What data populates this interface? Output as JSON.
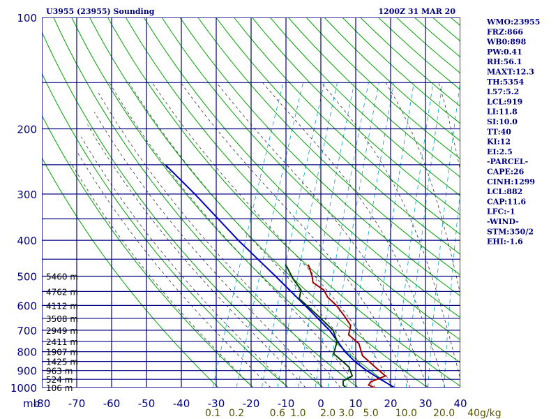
{
  "header": {
    "title": "U3955 (23955) Sounding",
    "datetime": "1200Z 31 MAR 20"
  },
  "indices": [
    "WMO:23955",
    "FRZ:866",
    "WB0:898",
    "PW:0.41",
    "RH:56.1",
    "MAXT:12.3",
    "TH:5354",
    "L57:5.2",
    "LCL:919",
    "LI:11.8",
    "SI:10.0",
    "TT:40",
    "KI:12",
    "EI:2.5",
    "-PARCEL-",
    "CAPE:26",
    "CINH:1299",
    "LCL:882",
    "CAP:11.6",
    "LFC:-1",
    "-WIND-",
    "STM:350/2",
    "EHI:-1.6"
  ],
  "colors": {
    "frame": "#000080",
    "dry_adiabat": "#00a000",
    "moist_adiabat": "#333333",
    "mixing_ratio": "#00a0c8",
    "temperature": "#a00000",
    "dewpoint": "#004000",
    "parcel": "#0000c0",
    "mixing_label": "#555500"
  },
  "chart_data": {
    "type": "skew-t",
    "y_axis_label": "mb",
    "pressure_levels": [
      100,
      200,
      300,
      400,
      500,
      600,
      700,
      800,
      900,
      1000
    ],
    "pressure_labels": [
      "100",
      "200",
      "300",
      "400",
      "500",
      "600",
      "700",
      "800",
      "900",
      "1000"
    ],
    "temp_ticks": [
      -80,
      -70,
      -60,
      -50,
      -40,
      -30,
      -20,
      -10,
      0,
      10,
      20,
      30,
      40
    ],
    "temp_tick_labels": [
      "-80",
      "-70",
      "-60",
      "-50",
      "-40",
      "-30",
      "-20",
      "-10",
      "0",
      "10",
      "20",
      "30",
      "40"
    ],
    "mixing_ratio_labels": [
      "0.1",
      "0.2",
      "0.6",
      "1.0",
      "2.0",
      "3.0",
      "5.0",
      "10.0",
      "20.0",
      "40g/kg"
    ],
    "height_labels": [
      {
        "p": 500,
        "label": "5460 m"
      },
      {
        "p": 550,
        "label": "4762 m"
      },
      {
        "p": 600,
        "label": "4112 m"
      },
      {
        "p": 650,
        "label": "3508 m"
      },
      {
        "p": 700,
        "label": "2949 m"
      },
      {
        "p": 750,
        "label": "2411 m"
      },
      {
        "p": 800,
        "label": "1907 m"
      },
      {
        "p": 850,
        "label": "1425 m"
      },
      {
        "p": 900,
        "label": "963 m"
      },
      {
        "p": 950,
        "label": "524 m"
      },
      {
        "p": 1000,
        "label": "106 m"
      }
    ],
    "temperature": [
      {
        "p": 1005,
        "t": 5.4
      },
      {
        "p": 985,
        "t": 2.8
      },
      {
        "p": 965,
        "t": 3.0
      },
      {
        "p": 930,
        "t": 6.5
      },
      {
        "p": 880,
        "t": 2.5
      },
      {
        "p": 820,
        "t": -2.5
      },
      {
        "p": 760,
        "t": -5.0
      },
      {
        "p": 720,
        "t": -9.0
      },
      {
        "p": 680,
        "t": -9.5
      },
      {
        "p": 640,
        "t": -12.5
      },
      {
        "p": 600,
        "t": -16.0
      },
      {
        "p": 570,
        "t": -19.5
      },
      {
        "p": 545,
        "t": -21.5
      },
      {
        "p": 520,
        "t": -25.5
      },
      {
        "p": 500,
        "t": -26.5
      },
      {
        "p": 465,
        "t": -29.0
      }
    ],
    "dewpoint": [
      {
        "p": 1005,
        "t": -3.0
      },
      {
        "p": 985,
        "t": -4.5
      },
      {
        "p": 960,
        "t": -5.0
      },
      {
        "p": 930,
        "t": -3.0
      },
      {
        "p": 880,
        "t": -5.0
      },
      {
        "p": 810,
        "t": -11.0
      },
      {
        "p": 750,
        "t": -11.5
      },
      {
        "p": 700,
        "t": -14.0
      },
      {
        "p": 640,
        "t": -20.0
      },
      {
        "p": 575,
        "t": -27.5
      },
      {
        "p": 545,
        "t": -28.0
      },
      {
        "p": 510,
        "t": -31.5
      },
      {
        "p": 465,
        "t": -35.5
      }
    ],
    "parcel": [
      {
        "p": 1005,
        "t": 11.0
      },
      {
        "p": 950,
        "t": 5.5
      },
      {
        "p": 900,
        "t": 0.5
      },
      {
        "p": 850,
        "t": -4.0
      },
      {
        "p": 800,
        "t": -8.0
      },
      {
        "p": 700,
        "t": -15.0
      },
      {
        "p": 600,
        "t": -25.0
      },
      {
        "p": 500,
        "t": -37.0
      },
      {
        "p": 400,
        "t": -52.0
      },
      {
        "p": 300,
        "t": -70.0
      },
      {
        "p": 250,
        "t": -82.0
      }
    ]
  }
}
